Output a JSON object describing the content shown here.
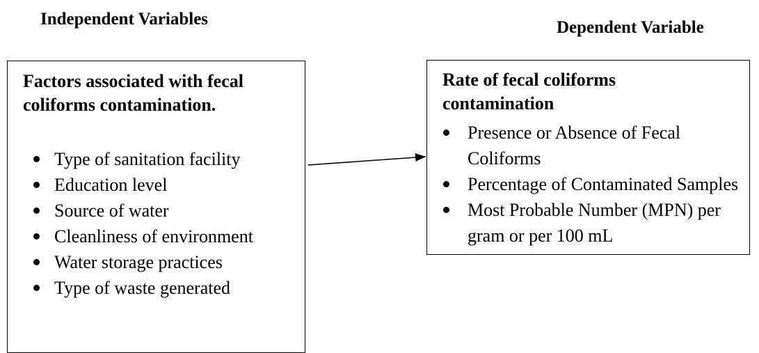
{
  "independent": {
    "heading": "Independent Variables",
    "title": "Factors associated with fecal coliforms contamination.",
    "items": [
      "Type of sanitation facility",
      "Education level",
      "Source of water",
      "Cleanliness of environment",
      "Water storage practices",
      "Type of waste generated"
    ]
  },
  "dependent": {
    "heading": "Dependent Variable",
    "title": "Rate of fecal coliforms contamination",
    "items": [
      "Presence or Absence of Fecal Coliforms",
      "Percentage of Contaminated Samples",
      "Most Probable Number (MPN) per gram or per 100 mL"
    ]
  }
}
